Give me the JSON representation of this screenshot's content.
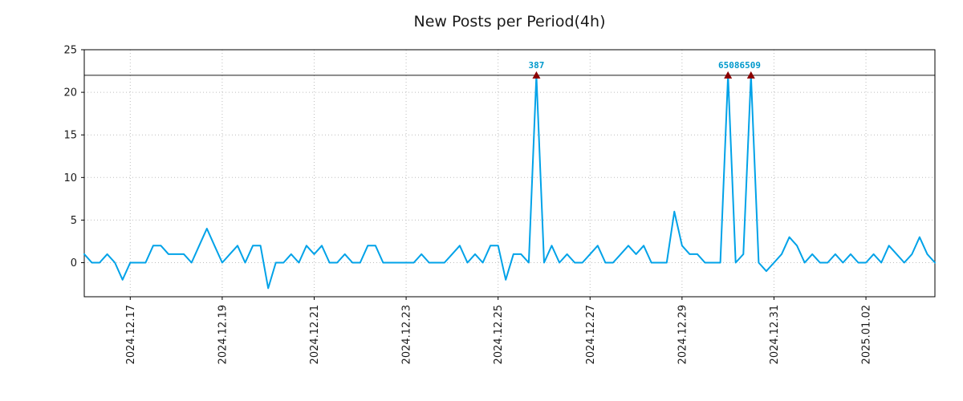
{
  "chart_data": {
    "type": "line",
    "title": "New Posts per Period(4h)",
    "xlabel": "",
    "ylabel": "",
    "period_hours": 4,
    "ylim": [
      -4,
      25
    ],
    "y_ticks": [
      0,
      5,
      10,
      15,
      20,
      25
    ],
    "x_tick_labels": [
      "2024.12.17",
      "2024.12.19",
      "2024.12.21",
      "2024.12.23",
      "2024.12.25",
      "2024.12.27",
      "2024.12.29",
      "2024.12.31",
      "2025.01.02"
    ],
    "x_tick_indices": [
      6,
      18,
      30,
      42,
      54,
      66,
      78,
      90,
      102
    ],
    "values": [
      1,
      0,
      0,
      1,
      0,
      -2,
      0,
      0,
      0,
      2,
      2,
      1,
      1,
      1,
      0,
      2,
      4,
      2,
      0,
      1,
      2,
      0,
      2,
      2,
      -3,
      0,
      0,
      1,
      0,
      2,
      1,
      2,
      0,
      0,
      1,
      0,
      0,
      2,
      2,
      0,
      0,
      0,
      0,
      0,
      1,
      0,
      0,
      0,
      1,
      2,
      0,
      1,
      0,
      2,
      2,
      -2,
      1,
      1,
      0,
      22,
      0,
      2,
      0,
      1,
      0,
      0,
      1,
      2,
      0,
      0,
      1,
      2,
      1,
      2,
      0,
      0,
      0,
      6,
      2,
      1,
      1,
      0,
      0,
      0,
      22,
      0,
      1,
      22,
      0,
      -1,
      0,
      1,
      3,
      2,
      0,
      1,
      0,
      0,
      1,
      0,
      1,
      0,
      0,
      1,
      0,
      2,
      1,
      0,
      1,
      3,
      1,
      0
    ],
    "cap_line_y": 22,
    "peak_value": 22,
    "peak_marker_indices": [
      59,
      84,
      87
    ],
    "annotations": [
      {
        "text": "387",
        "index": 59
      },
      {
        "text": "65086509",
        "index": 85.5
      }
    ],
    "grid": true,
    "legend": false,
    "colors": {
      "line": "#00A2E8",
      "marker": "#8B0000",
      "annotation": "#0099CC",
      "grid": "#bdbdbd",
      "axis": "#000000",
      "cap_line": "#1a1a1a",
      "tick_label": "#1a1a1a"
    }
  }
}
